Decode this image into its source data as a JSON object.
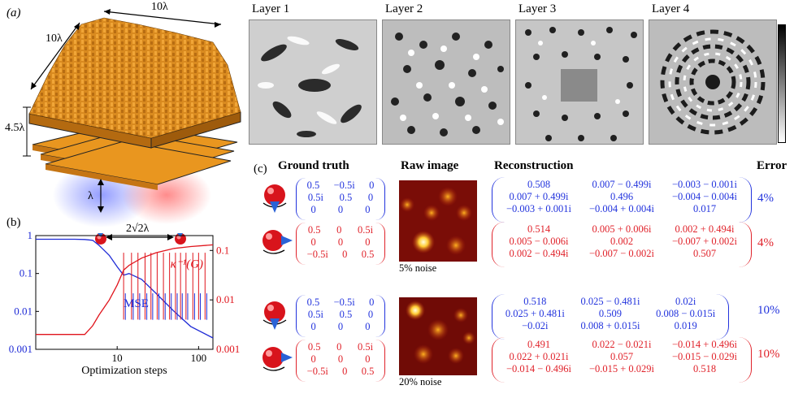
{
  "panel_a": {
    "label": "(a)",
    "dim_top": "10λ",
    "dim_left": "10λ",
    "dim_height": "4.5λ",
    "dim_lambda": "λ",
    "dim_spacing": "2√2λ",
    "layers": [
      {
        "title": "Layer 1"
      },
      {
        "title": "Layer 2"
      },
      {
        "title": "Layer 3"
      },
      {
        "title": "Layer 4"
      }
    ]
  },
  "panel_b": {
    "label": "(b)",
    "chart_data": {
      "type": "line",
      "xlabel": "Optimization steps",
      "x_scale": "log",
      "xlim": [
        1,
        150
      ],
      "xticks": [
        "10",
        "100"
      ],
      "ylim_left": [
        0.001,
        1
      ],
      "yticks_left": [
        "1",
        "0.1",
        "0.01",
        "0.001"
      ],
      "ylim_right": [
        0.001,
        0.2
      ],
      "yticks_right": [
        "0.1",
        "0.01",
        "0.001"
      ],
      "series": [
        {
          "name": "MSE",
          "color": "#1f2bd6",
          "axis": "left",
          "x": [
            1,
            3,
            4,
            5,
            6,
            8,
            10,
            12,
            14,
            20,
            30,
            50,
            80,
            150
          ],
          "y": [
            0.8,
            0.8,
            0.79,
            0.75,
            0.55,
            0.3,
            0.15,
            0.09,
            0.1,
            0.07,
            0.03,
            0.01,
            0.004,
            0.002
          ]
        },
        {
          "name": "κ⁻¹(G)",
          "color": "#e0141c",
          "axis": "right",
          "x": [
            1,
            3,
            4,
            5,
            6,
            8,
            10,
            12,
            14,
            20,
            30,
            50,
            80,
            150
          ],
          "y": [
            0.002,
            0.002,
            0.002,
            0.003,
            0.005,
            0.01,
            0.02,
            0.04,
            0.05,
            0.07,
            0.09,
            0.11,
            0.12,
            0.13
          ]
        }
      ]
    }
  },
  "panel_c": {
    "label": "(c)",
    "headers": {
      "ground_truth": "Ground truth",
      "raw_image": "Raw image",
      "reconstruction": "Reconstruction",
      "error": "Error"
    },
    "ground_truth_matrices": {
      "m1": {
        "r1": [
          "0.5",
          "−0.5i",
          "0"
        ],
        "r2": [
          "0.5i",
          "0.5",
          "0"
        ],
        "r3": [
          "0",
          "0",
          "0"
        ]
      },
      "m2": {
        "r1": [
          "0.5",
          "0",
          "0.5i"
        ],
        "r2": [
          "0",
          "0",
          "0"
        ],
        "r3": [
          "−0.5i",
          "0",
          "0.5"
        ]
      }
    },
    "rows": [
      {
        "noise": "5% noise",
        "recon_blue": {
          "r1": [
            "0.508",
            "0.007 − 0.499i",
            "−0.003 − 0.001i"
          ],
          "r2": [
            "0.007 + 0.499i",
            "0.496",
            "−0.004 − 0.004i"
          ],
          "r3": [
            "−0.003 + 0.001i",
            "−0.004 + 0.004i",
            "0.017"
          ]
        },
        "recon_red": {
          "r1": [
            "0.514",
            "0.005 + 0.006i",
            "0.002 + 0.494i"
          ],
          "r2": [
            "0.005 − 0.006i",
            "0.002",
            "−0.007 + 0.002i"
          ],
          "r3": [
            "0.002 − 0.494i",
            "−0.007 − 0.002i",
            "0.507"
          ]
        },
        "err_blue": "4%",
        "err_red": "4%"
      },
      {
        "noise": "20% noise",
        "recon_blue": {
          "r1": [
            "0.518",
            "0.025 − 0.481i",
            "0.02i"
          ],
          "r2": [
            "0.025 + 0.481i",
            "0.509",
            "0.008 − 0.015i"
          ],
          "r3": [
            "−0.02i",
            "0.008 + 0.015i",
            "0.019"
          ]
        },
        "recon_red": {
          "r1": [
            "0.491",
            "0.022 − 0.021i",
            "−0.014 + 0.496i"
          ],
          "r2": [
            "0.022 + 0.021i",
            "0.057",
            "−0.015 − 0.029i"
          ],
          "r3": [
            "−0.014 − 0.496i",
            "−0.015 + 0.029i",
            "0.518"
          ]
        },
        "err_blue": "10%",
        "err_red": "10%"
      }
    ]
  }
}
